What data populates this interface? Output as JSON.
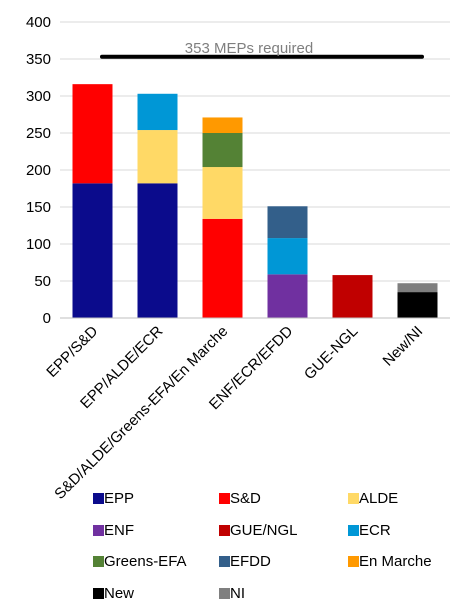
{
  "chart_data": {
    "type": "bar",
    "stacked": true,
    "ylim": [
      0,
      400
    ],
    "yticks": [
      0,
      50,
      100,
      150,
      200,
      250,
      300,
      350,
      400
    ],
    "grid": true,
    "legend_placement": "bottom",
    "categories": [
      "EPP/S&D",
      "EPP/ALDE/ECR",
      "S&D/ALDE/Greens-EFA/En Marche",
      "ENF/ECR/EFDD",
      "GUE-NGL",
      "New/NI"
    ],
    "series": [
      {
        "name": "EPP",
        "color": "#0b0b8c",
        "values": [
          182,
          182,
          0,
          0,
          0,
          0
        ]
      },
      {
        "name": "S&D",
        "color": "#ff0000",
        "values": [
          134,
          0,
          134,
          0,
          0,
          0
        ]
      },
      {
        "name": "ALDE",
        "color": "#ffd966",
        "values": [
          0,
          72,
          70,
          0,
          0,
          0
        ]
      },
      {
        "name": "ENF",
        "color": "#7030a0",
        "values": [
          0,
          0,
          0,
          59,
          0,
          0
        ]
      },
      {
        "name": "GUE/NGL",
        "color": "#c00000",
        "values": [
          0,
          0,
          0,
          0,
          58,
          0
        ]
      },
      {
        "name": "ECR",
        "color": "#0097d6",
        "values": [
          0,
          49,
          0,
          49,
          0,
          0
        ]
      },
      {
        "name": "Greens-EFA",
        "color": "#548235",
        "values": [
          0,
          0,
          46,
          0,
          0,
          0
        ]
      },
      {
        "name": "EFDD",
        "color": "#335f8a",
        "values": [
          0,
          0,
          0,
          43,
          0,
          0
        ]
      },
      {
        "name": "En Marche",
        "color": "#ff9900",
        "values": [
          0,
          0,
          21,
          0,
          0,
          0
        ]
      },
      {
        "name": "New",
        "color": "#000000",
        "values": [
          0,
          0,
          0,
          0,
          0,
          35
        ]
      },
      {
        "name": "NI",
        "color": "#7f7f7f",
        "values": [
          0,
          0,
          0,
          0,
          0,
          12
        ]
      }
    ],
    "threshold": {
      "value": 353,
      "label": "353 MEPs required",
      "color": "#000000"
    }
  }
}
